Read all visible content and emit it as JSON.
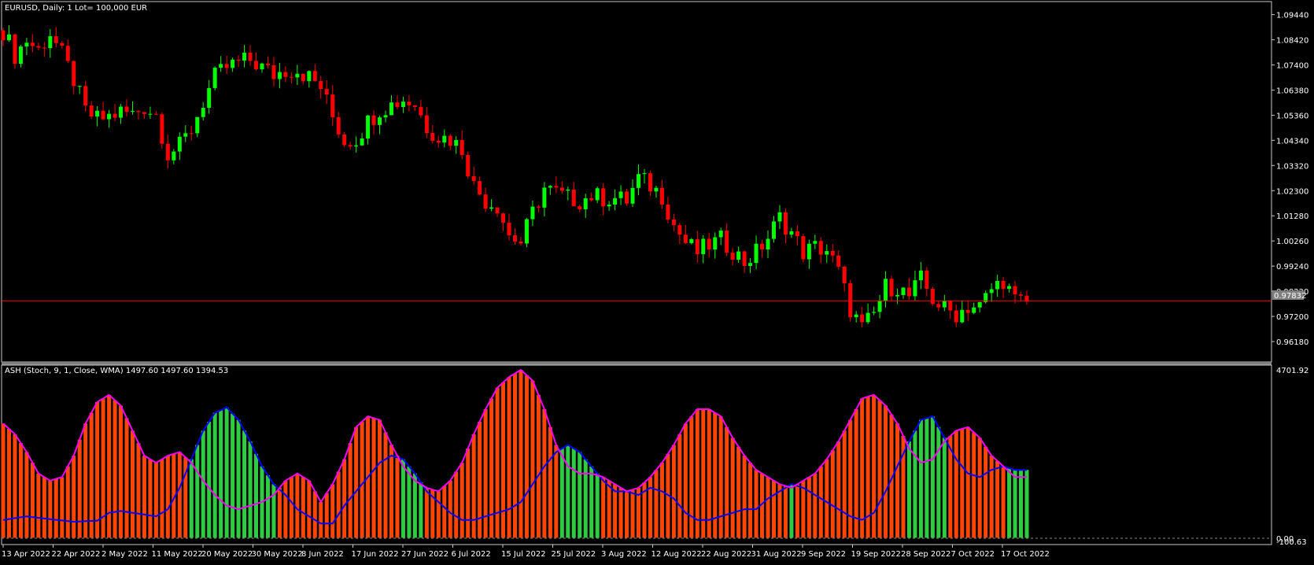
{
  "symbol_info": "EURUSD, Daily:  1 Lot= 100,000 EUR",
  "indicator_info": "ASH (Stoch, 9, 1, Close, WMA) 1497.60 1497.60 1394.53",
  "current_price_label": "0.97832",
  "colors": {
    "background": "#000000",
    "grid_frame": "#ffffff",
    "bull_candle": "#00ff00",
    "bear_candle": "#ff0000",
    "price_line": "#ff0000",
    "hist_bull": "#2ecc40",
    "hist_bear": "#ff4500",
    "bull_line": "#0000ff",
    "bear_line": "#ff00ff"
  },
  "chart_data": [
    {
      "type": "candlestick",
      "title": "EURUSD, Daily:  1 Lot= 100,000 EUR",
      "yticks": [
        "1.09440",
        "1.08420",
        "1.07400",
        "1.06380",
        "1.05360",
        "1.04340",
        "1.03320",
        "1.02300",
        "1.01280",
        "1.00260",
        "0.99240",
        "0.98220",
        "0.97200",
        "0.96180"
      ],
      "ylim": [
        0.9567,
        1.0965
      ],
      "current_price": 0.97832,
      "close_points": [
        [
          0,
          1.088
        ],
        [
          2,
          1.078
        ],
        [
          4,
          1.084
        ],
        [
          6,
          1.08
        ],
        [
          8,
          1.087
        ],
        [
          10,
          1.078
        ],
        [
          12,
          1.068
        ],
        [
          14,
          1.055
        ],
        [
          16,
          1.052
        ],
        [
          18,
          1.053
        ],
        [
          20,
          1.055
        ],
        [
          22,
          1.054
        ],
        [
          24,
          1.057
        ],
        [
          26,
          1.054
        ],
        [
          28,
          1.038
        ],
        [
          30,
          1.041
        ],
        [
          32,
          1.048
        ],
        [
          34,
          1.059
        ],
        [
          36,
          1.069
        ],
        [
          38,
          1.073
        ],
        [
          40,
          1.075
        ],
        [
          42,
          1.076
        ],
        [
          44,
          1.073
        ],
        [
          46,
          1.07
        ],
        [
          48,
          1.072
        ],
        [
          50,
          1.072
        ],
        [
          52,
          1.069
        ],
        [
          54,
          1.065
        ],
        [
          56,
          1.053
        ],
        [
          58,
          1.043
        ],
        [
          60,
          1.044
        ],
        [
          62,
          1.051
        ],
        [
          64,
          1.056
        ],
        [
          66,
          1.058
        ],
        [
          68,
          1.06
        ],
        [
          70,
          1.058
        ],
        [
          72,
          1.049
        ],
        [
          74,
          1.045
        ],
        [
          76,
          1.044
        ],
        [
          78,
          1.04
        ],
        [
          80,
          1.025
        ],
        [
          82,
          1.019
        ],
        [
          84,
          1.017
        ],
        [
          86,
          1.005
        ],
        [
          88,
          1.002
        ],
        [
          90,
          1.014
        ],
        [
          92,
          1.024
        ],
        [
          94,
          1.022
        ],
        [
          96,
          1.02
        ],
        [
          98,
          1.019
        ],
        [
          100,
          1.021
        ],
        [
          102,
          1.02
        ],
        [
          104,
          1.02
        ],
        [
          106,
          1.019
        ],
        [
          108,
          1.028
        ],
        [
          110,
          1.025
        ],
        [
          112,
          1.021
        ],
        [
          114,
          1.009
        ],
        [
          116,
          1.002
        ],
        [
          118,
          0.998
        ],
        [
          120,
          1.001
        ],
        [
          122,
          1.003
        ],
        [
          124,
          0.999
        ],
        [
          126,
          0.994
        ],
        [
          128,
          0.998
        ],
        [
          130,
          1.004
        ],
        [
          132,
          1.012
        ],
        [
          134,
          1.006
        ],
        [
          136,
          0.998
        ],
        [
          138,
          1.0
        ],
        [
          140,
          0.999
        ],
        [
          142,
          0.99
        ],
        [
          144,
          0.975
        ],
        [
          146,
          0.967
        ],
        [
          148,
          0.973
        ],
        [
          150,
          0.984
        ],
        [
          152,
          0.984
        ],
        [
          154,
          0.98
        ],
        [
          156,
          0.987
        ],
        [
          158,
          0.979
        ],
        [
          160,
          0.975
        ],
        [
          162,
          0.973
        ],
        [
          164,
          0.976
        ],
        [
          166,
          0.976
        ],
        [
          168,
          0.983
        ],
        [
          170,
          0.987
        ],
        [
          172,
          0.978
        ]
      ],
      "series": [
        {
          "name": "EURUSD"
        }
      ],
      "xlabels": [
        "13 Apr 2022",
        "22 Apr 2022",
        "2 May 2022",
        "11 May 2022",
        "20 May 2022",
        "30 May 2022",
        "8 Jun 2022",
        "17 Jun 2022",
        "27 Jun 2022",
        "6 Jul 2022",
        "15 Jul 2022",
        "25 Jul 2022",
        "3 Aug 2022",
        "12 Aug 2022",
        "22 Aug 2022",
        "31 Aug 2022",
        "9 Sep 2022",
        "19 Sep 2022",
        "28 Sep 2022",
        "7 Oct 2022",
        "17 Oct 2022"
      ]
    },
    {
      "type": "histogram",
      "title": "ASH (Stoch, 9, 1, Close, WMA) 1497.60 1497.60 1394.53",
      "yticks": [
        "4701.92",
        "0.00",
        "-100.63"
      ],
      "ylim": [
        -100.63,
        4701.92
      ],
      "series": [
        {
          "name": "bulls",
          "color": "#0000ff",
          "points": [
            [
              0,
              500
            ],
            [
              4,
              600
            ],
            [
              8,
              520
            ],
            [
              12,
              450
            ],
            [
              16,
              480
            ],
            [
              18,
              700
            ],
            [
              20,
              750
            ],
            [
              24,
              650
            ],
            [
              26,
              600
            ],
            [
              28,
              800
            ],
            [
              30,
              1400
            ],
            [
              32,
              2200
            ],
            [
              34,
              3000
            ],
            [
              36,
              3500
            ],
            [
              38,
              3650
            ],
            [
              40,
              3300
            ],
            [
              42,
              2700
            ],
            [
              44,
              2000
            ],
            [
              46,
              1500
            ],
            [
              48,
              1200
            ],
            [
              50,
              800
            ],
            [
              52,
              600
            ],
            [
              54,
              400
            ],
            [
              56,
              400
            ],
            [
              58,
              900
            ],
            [
              60,
              1300
            ],
            [
              62,
              1700
            ],
            [
              64,
              2100
            ],
            [
              66,
              2300
            ],
            [
              68,
              2200
            ],
            [
              70,
              1800
            ],
            [
              72,
              1300
            ],
            [
              74,
              1000
            ],
            [
              76,
              700
            ],
            [
              78,
              500
            ],
            [
              80,
              500
            ],
            [
              82,
              600
            ],
            [
              84,
              700
            ],
            [
              86,
              800
            ],
            [
              88,
              1000
            ],
            [
              90,
              1500
            ],
            [
              92,
              2000
            ],
            [
              94,
              2400
            ],
            [
              96,
              2600
            ],
            [
              98,
              2400
            ],
            [
              100,
              2000
            ],
            [
              102,
              1600
            ],
            [
              104,
              1300
            ],
            [
              106,
              1300
            ],
            [
              108,
              1200
            ],
            [
              110,
              1400
            ],
            [
              112,
              1300
            ],
            [
              114,
              1100
            ],
            [
              116,
              700
            ],
            [
              118,
              500
            ],
            [
              120,
              500
            ],
            [
              122,
              600
            ],
            [
              124,
              700
            ],
            [
              126,
              800
            ],
            [
              128,
              800
            ],
            [
              130,
              1100
            ],
            [
              132,
              1300
            ],
            [
              134,
              1500
            ],
            [
              136,
              1400
            ],
            [
              138,
              1200
            ],
            [
              140,
              1000
            ],
            [
              142,
              800
            ],
            [
              144,
              600
            ],
            [
              146,
              500
            ],
            [
              148,
              700
            ],
            [
              150,
              1300
            ],
            [
              152,
              2000
            ],
            [
              154,
              2700
            ],
            [
              156,
              3300
            ],
            [
              158,
              3400
            ],
            [
              160,
              2800
            ],
            [
              162,
              2200
            ],
            [
              164,
              1800
            ],
            [
              166,
              1700
            ],
            [
              168,
              1900
            ],
            [
              170,
              2000
            ],
            [
              172,
              1900
            ]
          ]
        },
        {
          "name": "bears",
          "color": "#ff00ff",
          "points": [
            [
              0,
              3200
            ],
            [
              2,
              2900
            ],
            [
              4,
              2400
            ],
            [
              6,
              1800
            ],
            [
              8,
              1600
            ],
            [
              10,
              1700
            ],
            [
              12,
              2300
            ],
            [
              14,
              3200
            ],
            [
              16,
              3800
            ],
            [
              18,
              4000
            ],
            [
              20,
              3700
            ],
            [
              22,
              3000
            ],
            [
              24,
              2300
            ],
            [
              26,
              2100
            ],
            [
              28,
              2300
            ],
            [
              30,
              2400
            ],
            [
              32,
              2100
            ],
            [
              34,
              1600
            ],
            [
              36,
              1200
            ],
            [
              38,
              900
            ],
            [
              40,
              800
            ],
            [
              42,
              900
            ],
            [
              44,
              1000
            ],
            [
              46,
              1200
            ],
            [
              48,
              1600
            ],
            [
              50,
              1800
            ],
            [
              52,
              1600
            ],
            [
              54,
              1000
            ],
            [
              56,
              1500
            ],
            [
              58,
              2200
            ],
            [
              60,
              3100
            ],
            [
              62,
              3400
            ],
            [
              64,
              3300
            ],
            [
              66,
              2600
            ],
            [
              68,
              2000
            ],
            [
              70,
              1600
            ],
            [
              72,
              1400
            ],
            [
              74,
              1300
            ],
            [
              76,
              1600
            ],
            [
              78,
              2100
            ],
            [
              80,
              2900
            ],
            [
              82,
              3600
            ],
            [
              84,
              4200
            ],
            [
              86,
              4500
            ],
            [
              88,
              4700
            ],
            [
              90,
              4400
            ],
            [
              92,
              3600
            ],
            [
              94,
              2600
            ],
            [
              96,
              2000
            ],
            [
              98,
              1800
            ],
            [
              100,
              1800
            ],
            [
              102,
              1700
            ],
            [
              104,
              1500
            ],
            [
              106,
              1300
            ],
            [
              108,
              1400
            ],
            [
              110,
              1700
            ],
            [
              112,
              2100
            ],
            [
              114,
              2600
            ],
            [
              116,
              3200
            ],
            [
              118,
              3600
            ],
            [
              120,
              3600
            ],
            [
              122,
              3400
            ],
            [
              124,
              2800
            ],
            [
              126,
              2300
            ],
            [
              128,
              1900
            ],
            [
              130,
              1700
            ],
            [
              132,
              1500
            ],
            [
              134,
              1400
            ],
            [
              136,
              1600
            ],
            [
              138,
              1800
            ],
            [
              140,
              2200
            ],
            [
              142,
              2700
            ],
            [
              144,
              3300
            ],
            [
              146,
              3900
            ],
            [
              148,
              4000
            ],
            [
              150,
              3700
            ],
            [
              152,
              3200
            ],
            [
              154,
              2500
            ],
            [
              156,
              2100
            ],
            [
              158,
              2200
            ],
            [
              160,
              2700
            ],
            [
              162,
              3000
            ],
            [
              164,
              3100
            ],
            [
              166,
              2800
            ],
            [
              168,
              2300
            ],
            [
              170,
              2000
            ],
            [
              172,
              1700
            ]
          ]
        }
      ]
    }
  ]
}
